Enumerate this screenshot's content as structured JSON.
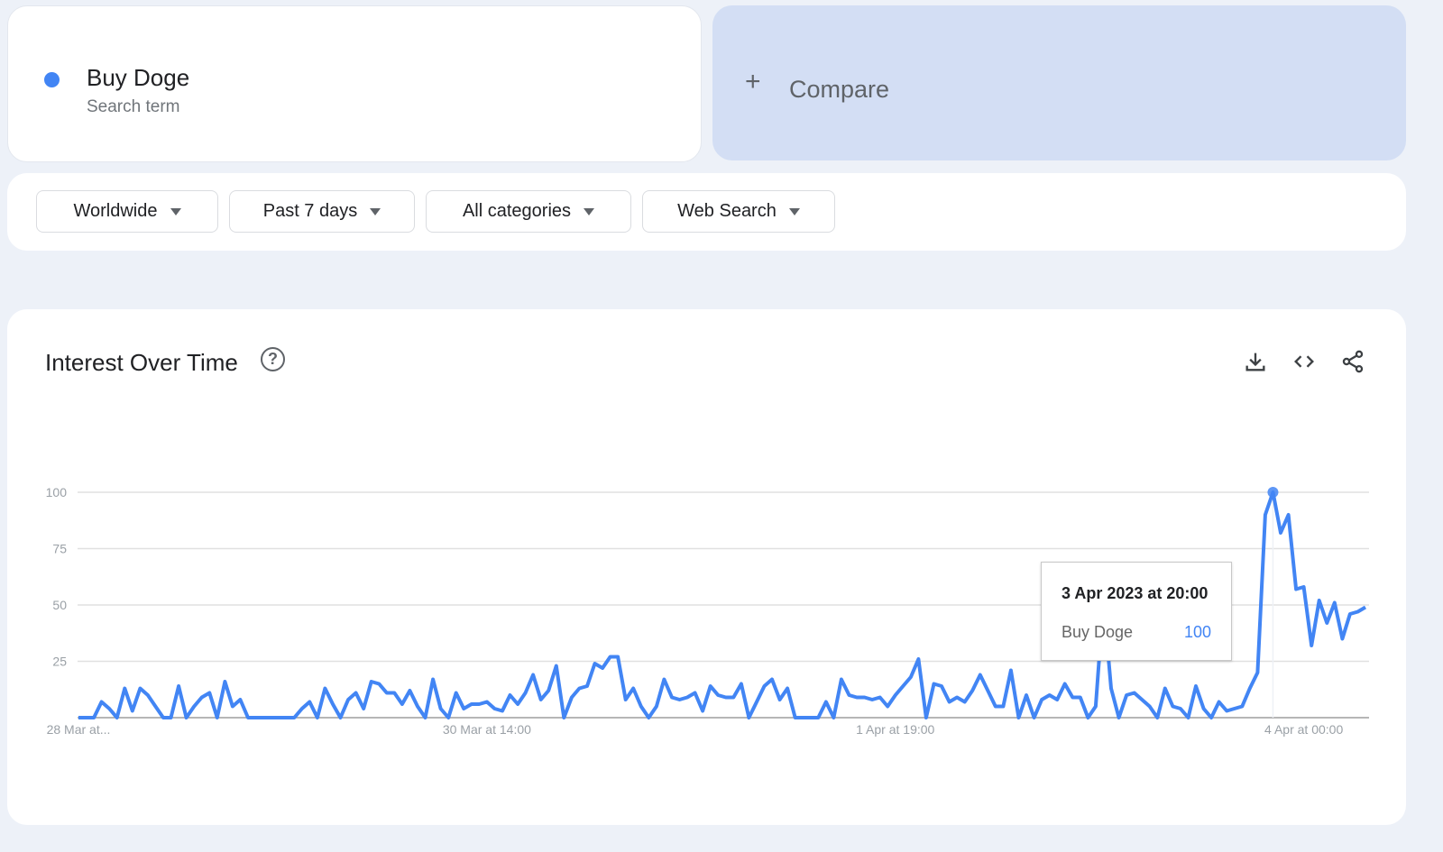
{
  "search_term": {
    "name": "Buy Doge",
    "type": "Search term",
    "color": "#4285f4"
  },
  "compare": {
    "label": "Compare",
    "icon": "plus-icon"
  },
  "filters": [
    {
      "label": "Worldwide"
    },
    {
      "label": "Past 7 days"
    },
    {
      "label": "All categories"
    },
    {
      "label": "Web Search"
    }
  ],
  "interest": {
    "title": "Interest Over Time",
    "help_icon": "?",
    "actions": [
      "download-icon",
      "embed-code-icon",
      "share-icon"
    ]
  },
  "tooltip": {
    "date": "3 Apr 2023 at 20:00",
    "series": "Buy Doge",
    "value": "100"
  },
  "chart_data": {
    "type": "line",
    "ylim": [
      0,
      100
    ],
    "y_ticks": [
      "100",
      "75",
      "50",
      "25"
    ],
    "x_tick_labels": [
      "28 Mar at...",
      "30 Mar at 14:00",
      "1 Apr at 19:00",
      "4 Apr at 00:00"
    ],
    "grid": true,
    "line_color": "#4285f4",
    "series": [
      {
        "name": "Buy Doge",
        "values": [
          0,
          0,
          0,
          7,
          4,
          0,
          13,
          3,
          13,
          10,
          5,
          0,
          0,
          14,
          0,
          5,
          9,
          11,
          0,
          16,
          5,
          8,
          0,
          0,
          0,
          0,
          0,
          0,
          0,
          4,
          7,
          0,
          13,
          6,
          0,
          8,
          11,
          4,
          16,
          15,
          11,
          11,
          6,
          12,
          5,
          0,
          17,
          4,
          0,
          11,
          4,
          6,
          6,
          7,
          4,
          3,
          10,
          6,
          11,
          19,
          8,
          12,
          23,
          0,
          9,
          13,
          14,
          24,
          22,
          27,
          27,
          8,
          13,
          5,
          0,
          5,
          17,
          9,
          8,
          9,
          11,
          3,
          14,
          10,
          9,
          9,
          15,
          0,
          7,
          14,
          17,
          8,
          13,
          0,
          0,
          0,
          0,
          7,
          0,
          17,
          10,
          9,
          9,
          8,
          9,
          5,
          10,
          14,
          18,
          26,
          0,
          15,
          14,
          7,
          9,
          7,
          12,
          19,
          12,
          5,
          5,
          21,
          0,
          10,
          0,
          8,
          10,
          8,
          15,
          9,
          9,
          0,
          5,
          52,
          13,
          0,
          10,
          11,
          8,
          5,
          0,
          13,
          5,
          4,
          0,
          14,
          4,
          0,
          7,
          3,
          4,
          5,
          13,
          20,
          90,
          100,
          82,
          90,
          57,
          58,
          32,
          52,
          42,
          51,
          35,
          46,
          47,
          49
        ]
      }
    ],
    "highlighted_point": {
      "label": "3 Apr 2023 at 20:00",
      "value": 100
    }
  }
}
